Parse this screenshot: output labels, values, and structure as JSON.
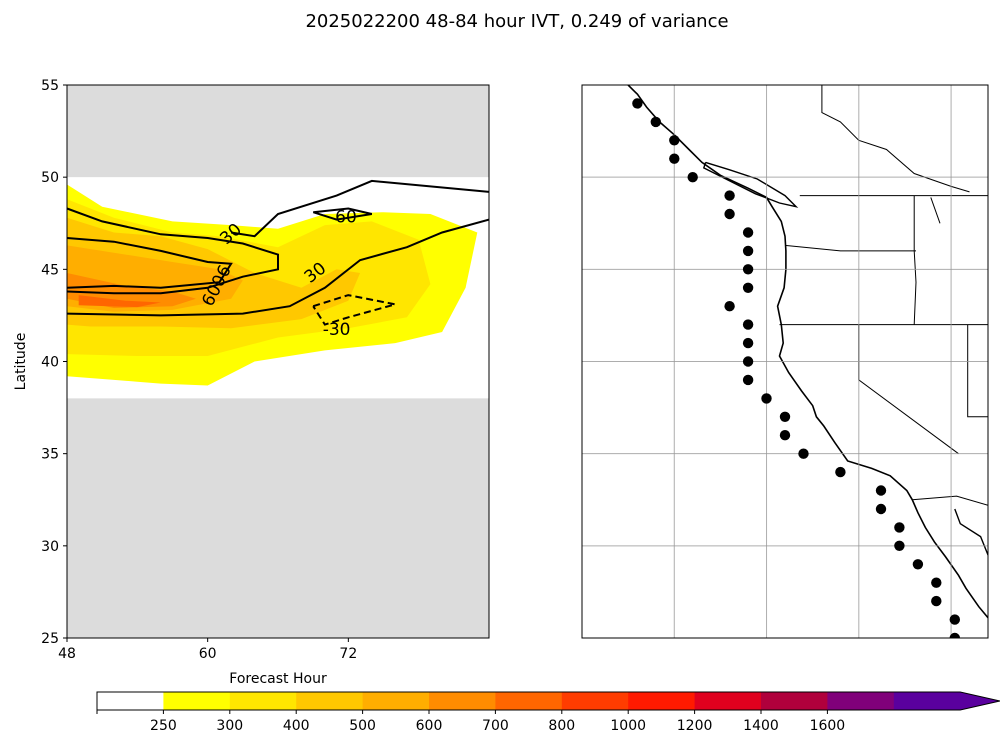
{
  "figure": {
    "title": "2025022200 48-84 hour IVT, 0.249 of variance"
  },
  "chart_data": [
    {
      "type": "contour",
      "xlabel": "Forecast Hour",
      "ylabel": "Latitude",
      "xlim": [
        48,
        84
      ],
      "ylim": [
        25,
        55
      ],
      "xticks": [
        48,
        60,
        72
      ],
      "yticks": [
        25,
        30,
        35,
        40,
        45,
        50,
        55
      ],
      "masked_background": "#dcdcdc",
      "data_lat_range": [
        38,
        50
      ],
      "filled_contours": [
        {
          "level": 250,
          "color": "#ffff00",
          "polygon": [
            [
              48,
              49.6
            ],
            [
              51,
              48.4
            ],
            [
              57,
              47.6
            ],
            [
              62,
              47.4
            ],
            [
              66,
              47.2
            ],
            [
              70,
              48.0
            ],
            [
              75,
              48.1
            ],
            [
              79,
              48.0
            ],
            [
              83,
              47.0
            ],
            [
              82,
              44.0
            ],
            [
              80,
              41.6
            ],
            [
              76,
              41.0
            ],
            [
              70,
              40.6
            ],
            [
              64,
              40.0
            ],
            [
              60,
              38.7
            ],
            [
              56,
              38.8
            ],
            [
              52,
              39.0
            ],
            [
              48,
              39.2
            ]
          ]
        },
        {
          "level": 300,
          "color": "#ffe600",
          "polygon": [
            [
              48,
              48.8
            ],
            [
              52,
              47.8
            ],
            [
              57,
              47.0
            ],
            [
              61,
              46.8
            ],
            [
              66,
              46.2
            ],
            [
              70,
              47.4
            ],
            [
              74,
              47.6
            ],
            [
              78,
              46.6
            ],
            [
              79,
              44.2
            ],
            [
              77,
              42.4
            ],
            [
              72,
              41.8
            ],
            [
              66,
              41.3
            ],
            [
              60,
              40.3
            ],
            [
              54,
              40.3
            ],
            [
              48,
              40.4
            ]
          ]
        },
        {
          "level": 400,
          "color": "#ffc800",
          "polygon": [
            [
              48,
              47.8
            ],
            [
              52,
              47.0
            ],
            [
              56,
              46.8
            ],
            [
              60,
              46.1
            ],
            [
              64,
              44.8
            ],
            [
              68,
              44.0
            ],
            [
              71,
              45.0
            ],
            [
              73,
              44.8
            ],
            [
              72,
              43.3
            ],
            [
              68,
              42.3
            ],
            [
              62,
              41.8
            ],
            [
              56,
              41.9
            ],
            [
              50,
              41.9
            ],
            [
              48,
              42.0
            ]
          ]
        },
        {
          "level": 500,
          "color": "#ffae00",
          "polygon": [
            [
              48,
              46.3
            ],
            [
              52,
              45.9
            ],
            [
              57,
              45.4
            ],
            [
              61,
              45.0
            ],
            [
              63,
              44.4
            ],
            [
              62,
              43.4
            ],
            [
              57,
              42.8
            ],
            [
              52,
              42.7
            ],
            [
              48,
              43.0
            ]
          ]
        },
        {
          "level": 600,
          "color": "#ff8c00",
          "polygon": [
            [
              48,
              44.8
            ],
            [
              53,
              44.1
            ],
            [
              57,
              43.8
            ],
            [
              59,
              43.4
            ],
            [
              57,
              43.0
            ],
            [
              52,
              42.9
            ],
            [
              48,
              43.4
            ]
          ]
        },
        {
          "level": 700,
          "color": "#ff6600",
          "polygon": [
            [
              49,
              43.6
            ],
            [
              53,
              43.3
            ],
            [
              56,
              43.2
            ],
            [
              54,
              42.95
            ],
            [
              49,
              43.05
            ]
          ]
        }
      ],
      "line_contours": [
        {
          "label": "30",
          "style": "solid",
          "points": [
            [
              62,
              47.0
            ],
            [
              64,
              46.8
            ],
            [
              66,
              48.0
            ],
            [
              71,
              49.0
            ],
            [
              74,
              49.8
            ],
            [
              84,
              49.2
            ]
          ]
        },
        {
          "label": "30",
          "style": "solid",
          "points": [
            [
              48,
              42.6
            ],
            [
              56,
              42.5
            ],
            [
              63,
              42.6
            ],
            [
              67,
              43.0
            ],
            [
              70,
              44.0
            ],
            [
              73,
              45.5
            ],
            [
              77,
              46.2
            ],
            [
              80,
              47.0
            ],
            [
              84,
              47.7
            ]
          ]
        },
        {
          "label": "60",
          "style": "solid",
          "points": [
            [
              48,
              48.3
            ],
            [
              51,
              47.6
            ],
            [
              56,
              46.9
            ],
            [
              60,
              46.7
            ],
            [
              63,
              46.4
            ],
            [
              66,
              45.8
            ],
            [
              66,
              45.0
            ],
            [
              63,
              44.6
            ],
            [
              60,
              44.0
            ],
            [
              56,
              43.7
            ],
            [
              52,
              43.7
            ],
            [
              48,
              43.8
            ]
          ]
        },
        {
          "label": "60",
          "style": "solid",
          "points": [
            [
              48,
              46.7
            ],
            [
              52,
              46.5
            ],
            [
              56,
              46.0
            ],
            [
              60,
              45.4
            ],
            [
              62,
              45.3
            ],
            [
              61,
              44.3
            ],
            [
              56,
              44.0
            ],
            [
              52,
              44.1
            ],
            [
              48,
              44.0
            ]
          ]
        },
        {
          "label": "60",
          "style": "solid",
          "points": [
            [
              69,
              48.1
            ],
            [
              72,
              48.3
            ],
            [
              74,
              48.0
            ],
            [
              71,
              47.7
            ],
            [
              69,
              48.1
            ]
          ]
        },
        {
          "label": "-30",
          "style": "dashed",
          "points": [
            [
              69,
              43.0
            ],
            [
              72,
              43.6
            ],
            [
              76,
              43.1
            ],
            [
              72,
              42.4
            ],
            [
              70,
              42.0
            ],
            [
              69,
              43.0
            ]
          ]
        }
      ],
      "contour_labels": [
        {
          "text": "30",
          "x": 62.0,
          "y": 46.9,
          "rotation": -42
        },
        {
          "text": "30",
          "x": 69.2,
          "y": 44.8,
          "rotation": -38
        },
        {
          "text": "60",
          "x": 71.8,
          "y": 47.8,
          "rotation": 0
        },
        {
          "text": "6006",
          "x": 60.8,
          "y": 44.1,
          "rotation": -63
        },
        {
          "text": "-30",
          "x": 71.0,
          "y": 41.7,
          "rotation": 0
        }
      ]
    },
    {
      "type": "map",
      "lon_range": [
        -135,
        -113
      ],
      "lat_range": [
        25,
        55
      ],
      "gridlines_lon": [
        -130,
        -125,
        -120,
        -115
      ],
      "gridlines_lat": [
        30,
        35,
        40,
        45,
        50
      ],
      "grid": true,
      "stations": [
        [
          -132.0,
          54.0
        ],
        [
          -131.0,
          53.0
        ],
        [
          -130.0,
          52.0
        ],
        [
          -130.0,
          51.0
        ],
        [
          -129.0,
          50.0
        ],
        [
          -127.0,
          49.0
        ],
        [
          -127.0,
          48.0
        ],
        [
          -126.0,
          47.0
        ],
        [
          -126.0,
          46.0
        ],
        [
          -126.0,
          45.0
        ],
        [
          -126.0,
          44.0
        ],
        [
          -127.0,
          43.0
        ],
        [
          -126.0,
          42.0
        ],
        [
          -126.0,
          41.0
        ],
        [
          -126.0,
          40.0
        ],
        [
          -126.0,
          39.0
        ],
        [
          -125.0,
          38.0
        ],
        [
          -124.0,
          37.0
        ],
        [
          -124.0,
          36.0
        ],
        [
          -123.0,
          35.0
        ],
        [
          -121.0,
          34.0
        ],
        [
          -118.8,
          33.0
        ],
        [
          -118.8,
          32.0
        ],
        [
          -117.8,
          31.0
        ],
        [
          -117.8,
          30.0
        ],
        [
          -116.8,
          29.0
        ],
        [
          -115.8,
          28.0
        ],
        [
          -115.8,
          27.0
        ],
        [
          -114.8,
          26.0
        ],
        [
          -114.8,
          25.0
        ]
      ],
      "ocean_color": "#ffffff"
    }
  ],
  "colorbar": {
    "ticks": [
      "250",
      "300",
      "400",
      "500",
      "600",
      "700",
      "800",
      "1000",
      "1200",
      "1400",
      "1600"
    ],
    "colors": [
      "#ffffff",
      "#ffff00",
      "#ffe600",
      "#ffc800",
      "#ffae00",
      "#ff8c00",
      "#ff6600",
      "#ff3c00",
      "#ff1a00",
      "#e0001e",
      "#b0003c",
      "#80007a",
      "#5a009e"
    ],
    "extend": "max"
  }
}
